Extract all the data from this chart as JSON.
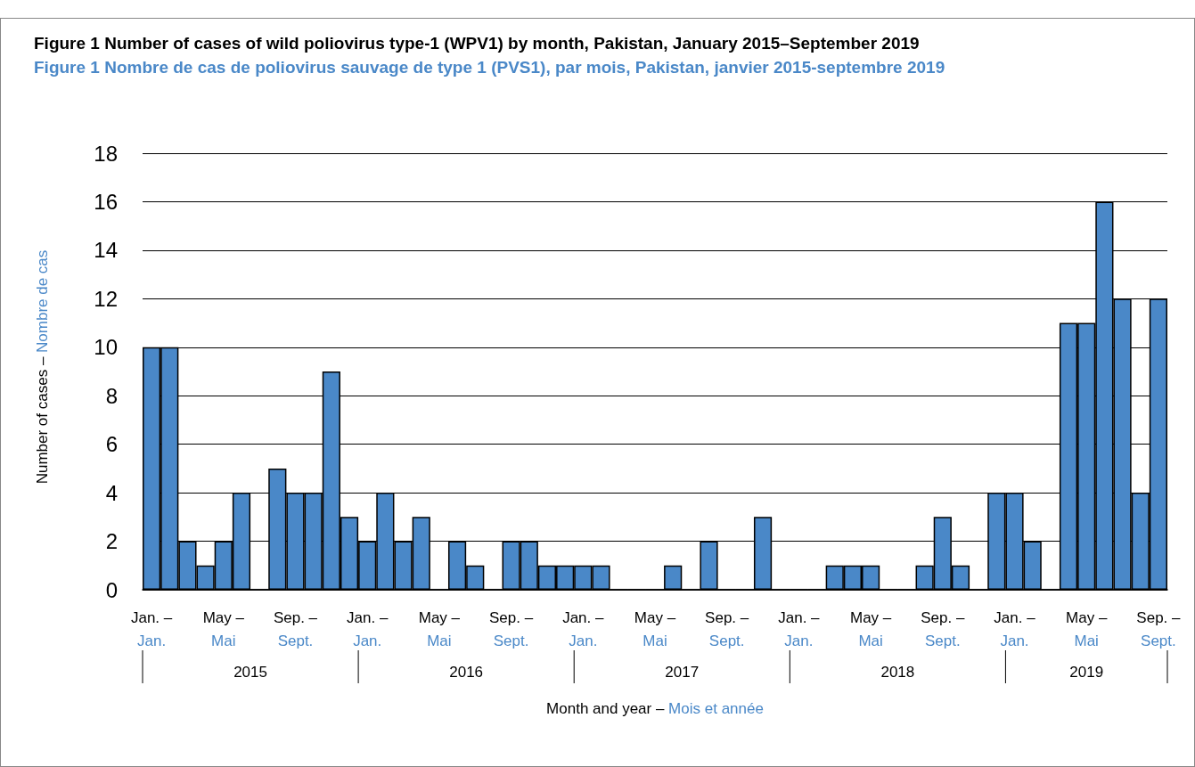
{
  "chart_data": {
    "type": "bar",
    "title": "Figure 1  Number of cases of wild poliovirus type-1 (WPV1) by month, Pakistan, January 2015–September 2019",
    "subtitle": "Figure 1  Nombre de cas de poliovirus sauvage de type 1 (PVS1), par mois, Pakistan, janvier 2015-septembre 2019",
    "ylabel": "Number of cases – Nombre de cas",
    "xlabel": "Month and year – Mois et année",
    "categories": [
      "Jan. –\nJan.",
      null,
      null,
      null,
      "May –\nMai",
      null,
      null,
      null,
      "Sep. –\nSept.",
      null,
      null,
      null,
      "Jan. –\nJan.",
      null,
      null,
      null,
      "May –\nMai",
      null,
      null,
      null,
      "Sep. –\nSept.",
      null,
      null,
      null,
      "Jan. –\nJan.",
      null,
      null,
      null,
      "May –\nMai",
      null,
      null,
      null,
      "Sep. –\nSept.",
      null,
      null,
      null,
      "Jan. –\nJan.",
      null,
      null,
      null,
      "May –\nMai",
      null,
      null,
      null,
      "Sep. –\nSept.",
      null,
      null,
      null,
      "Jan. –\nJan.",
      null,
      null,
      null,
      "May –\nMai",
      null,
      null,
      null,
      "Sep. –\nSept."
    ],
    "values": [
      10,
      10,
      2,
      1,
      2,
      4,
      0,
      5,
      4,
      4,
      9,
      3,
      2,
      4,
      2,
      3,
      0,
      2,
      1,
      0,
      2,
      2,
      1,
      1,
      1,
      1,
      0,
      0,
      0,
      1,
      0,
      2,
      0,
      0,
      3,
      0,
      0,
      0,
      1,
      1,
      1,
      0,
      0,
      1,
      3,
      1,
      0,
      4,
      4,
      2,
      0,
      11,
      11,
      16,
      12,
      4,
      12
    ],
    "annotations": [
      "2015",
      "2016",
      "2017",
      "2018",
      "2019"
    ],
    "color": "#4a88c8",
    "ylim": [
      0,
      18
    ],
    "yticks": [
      0,
      2,
      4,
      6,
      8,
      10,
      12,
      14,
      16,
      18
    ],
    "grid": "y"
  }
}
